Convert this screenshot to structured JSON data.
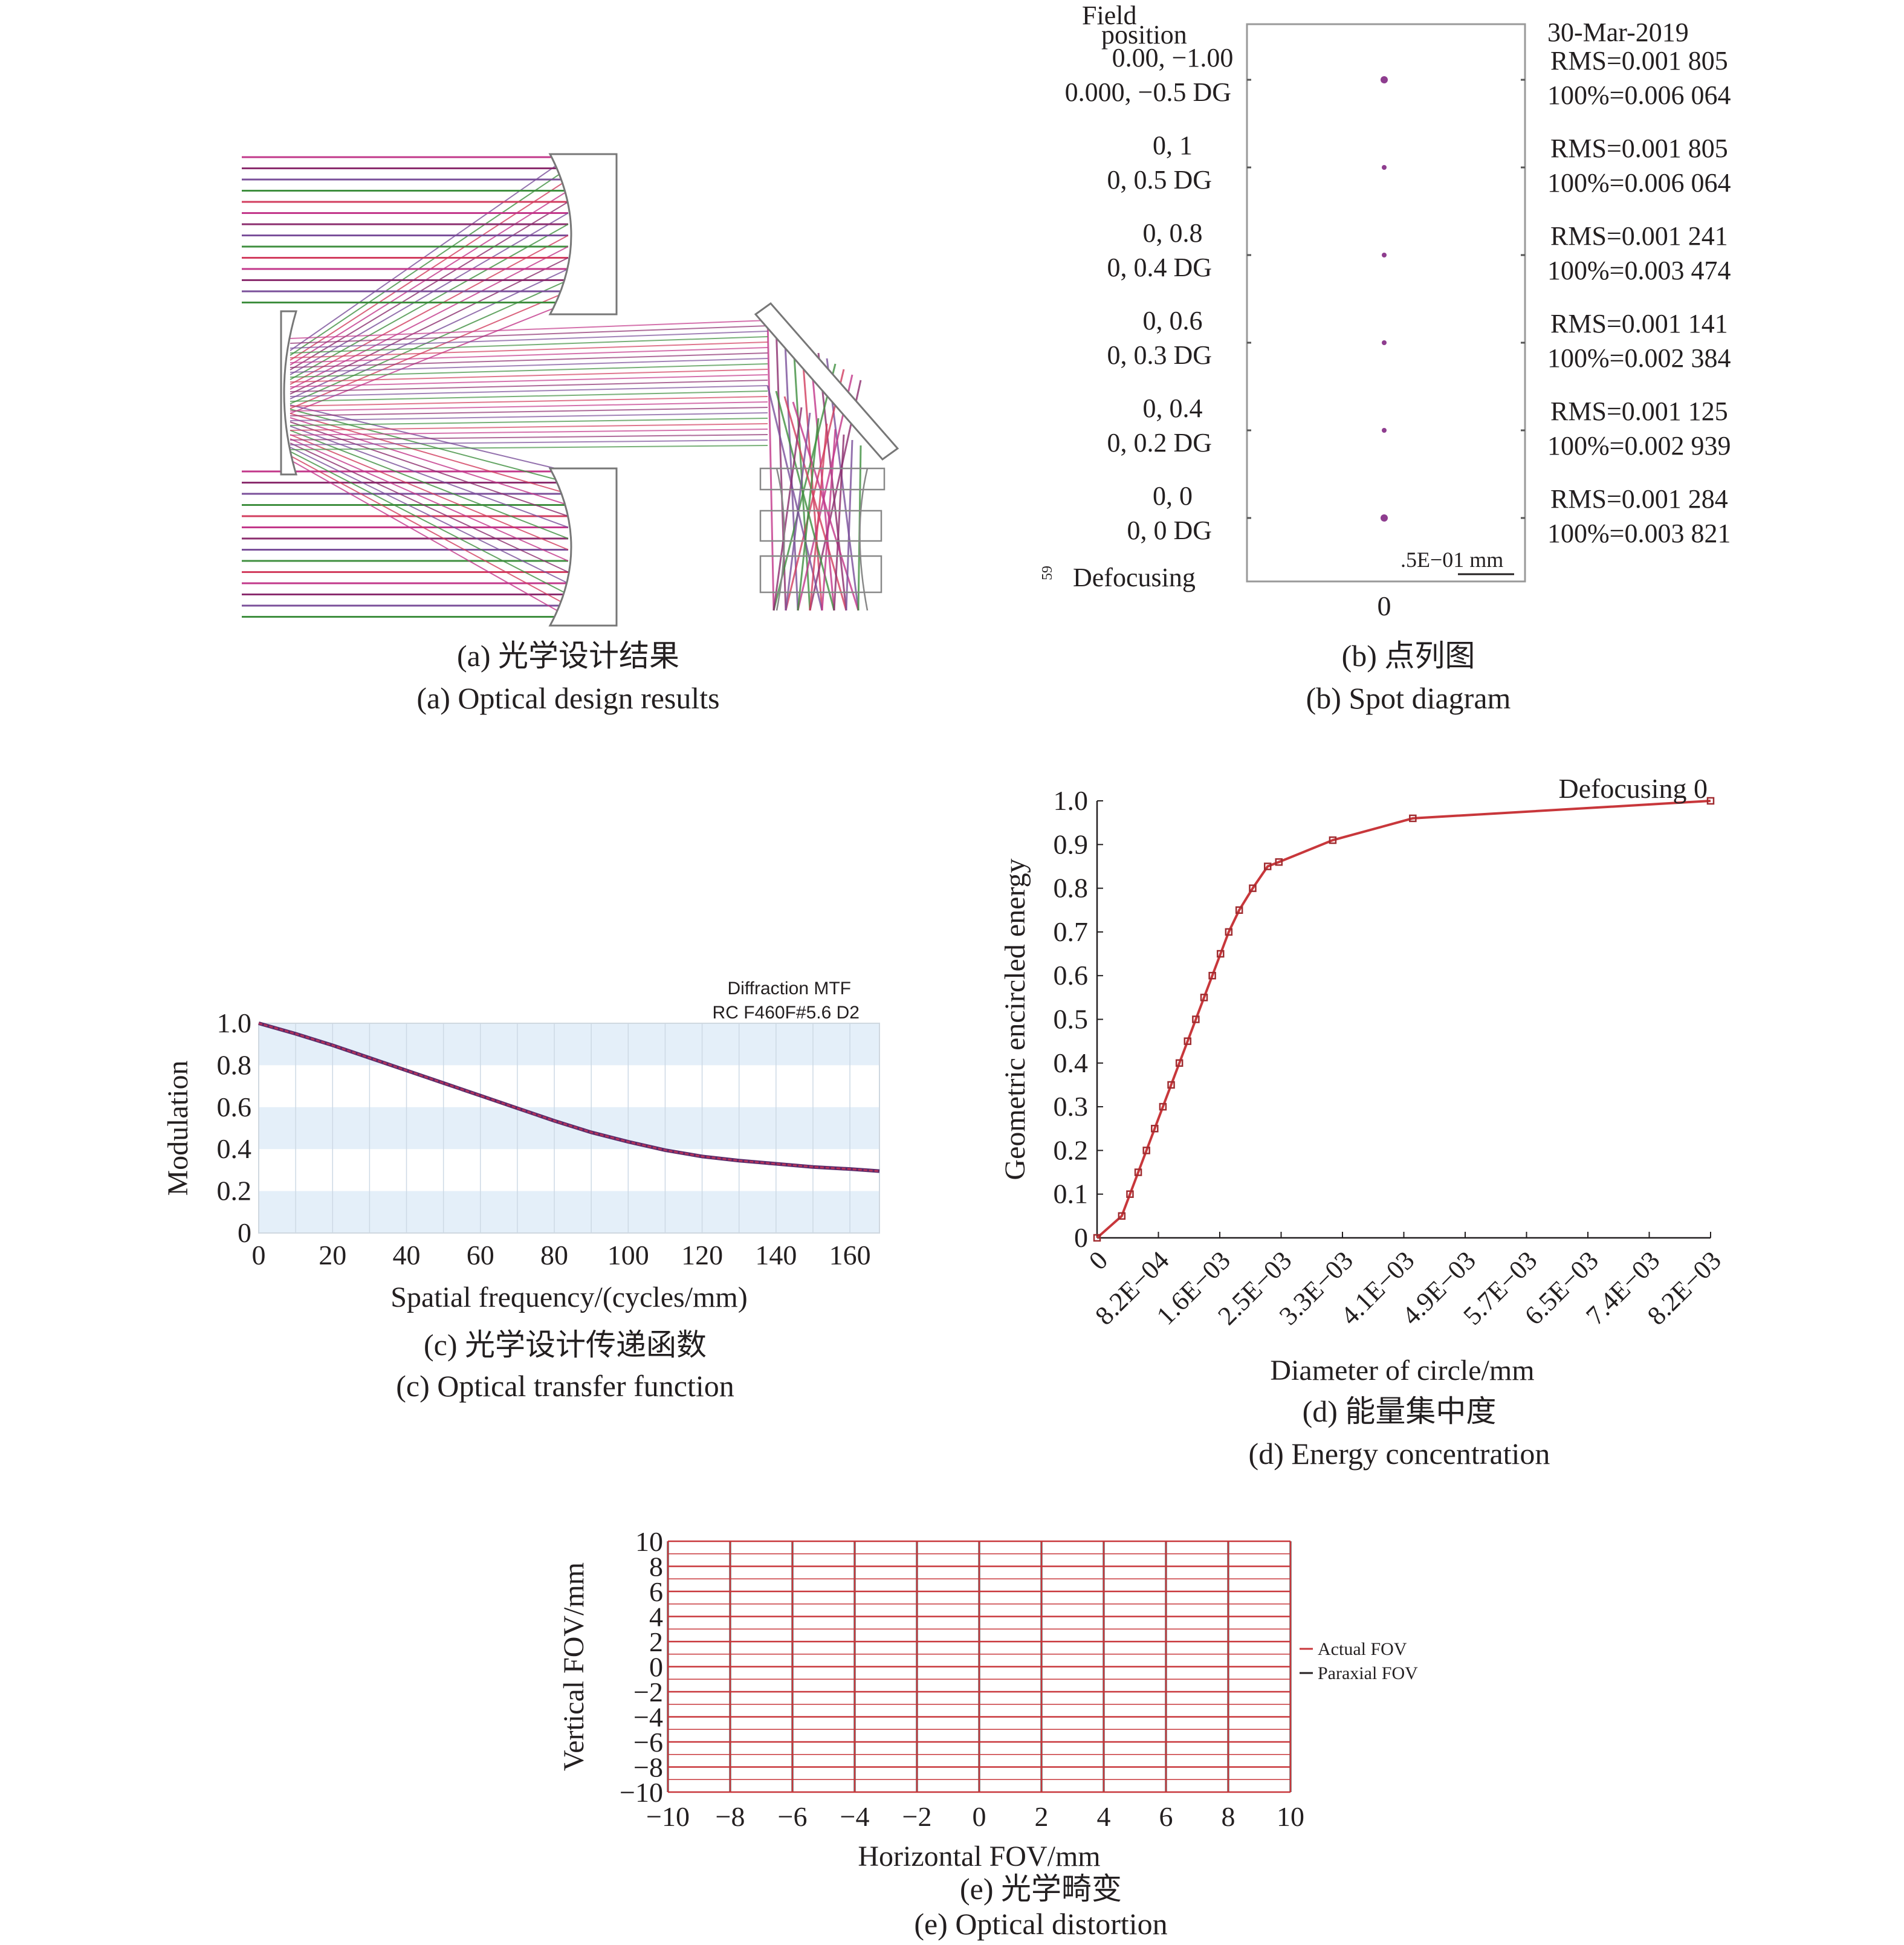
{
  "panel_a": {
    "caption_cn": "(a) 光学设计结果",
    "caption_en": "(a) Optical design results"
  },
  "panel_b": {
    "caption_cn": "(b) 点列图",
    "caption_en": "(b) Spot diagram",
    "field_header_1": "Field",
    "field_header_2": "position",
    "date": "30-Mar-2019",
    "scale_label": ".5E−01 mm",
    "x_tick": "0",
    "defocus_label": "Defocusing",
    "defocus_small": "59",
    "rows": [
      {
        "field1": "0.00, −1.00",
        "field2": "0.000, −0.5 DG",
        "rms": "RMS=0.001 805",
        "p100": "100%=0.006 064"
      },
      {
        "field1": "0, 1",
        "field2": "0, 0.5 DG",
        "rms": "RMS=0.001 805",
        "p100": "100%=0.006 064"
      },
      {
        "field1": "0, 0.8",
        "field2": "0, 0.4 DG",
        "rms": "RMS=0.001 241",
        "p100": "100%=0.003 474"
      },
      {
        "field1": "0, 0.6",
        "field2": "0, 0.3 DG",
        "rms": "RMS=0.001 141",
        "p100": "100%=0.002 384"
      },
      {
        "field1": "0, 0.4",
        "field2": "0, 0.2 DG",
        "rms": "RMS=0.001 125",
        "p100": "100%=0.002 939"
      },
      {
        "field1": "0, 0",
        "field2": "0, 0 DG",
        "rms": "RMS=0.001 284",
        "p100": "100%=0.003 821"
      }
    ]
  },
  "panel_c": {
    "caption_cn": "(c) 光学设计传递函数",
    "caption_en": "(c) Optical transfer function",
    "note_1": "Diffraction MTF",
    "note_2": "RC F460F#5.6 D2"
  },
  "panel_d": {
    "caption_cn": "(d) 能量集中度",
    "caption_en": "(d) Energy concentration"
  },
  "panel_e": {
    "caption_cn": "(e) 光学畸变",
    "caption_en": "(e) Optical distortion"
  },
  "chart_data": [
    {
      "id": "mtf",
      "type": "line",
      "xlabel": "Spatial frequency/(cycles/mm)",
      "ylabel": "Modulation",
      "xlim": [
        0,
        168
      ],
      "ylim": [
        0,
        1.0
      ],
      "xticks": [
        "0",
        "20",
        "40",
        "60",
        "80",
        "100",
        "120",
        "140",
        "160"
      ],
      "yticks": [
        "0",
        "0.2",
        "0.4",
        "0.6",
        "0.8",
        "1.0"
      ],
      "series": [
        {
          "x": [
            0,
            10,
            20,
            30,
            40,
            50,
            60,
            70,
            80,
            90,
            100,
            110,
            120,
            130,
            140,
            150,
            160,
            168
          ],
          "y": [
            1.0,
            0.95,
            0.895,
            0.835,
            0.775,
            0.715,
            0.655,
            0.595,
            0.535,
            0.48,
            0.435,
            0.395,
            0.365,
            0.345,
            0.33,
            0.315,
            0.305,
            0.295
          ],
          "color": "#b5325a"
        }
      ]
    },
    {
      "id": "encircled",
      "type": "line",
      "annotation": "Defocusing 0",
      "xlabel": "Diameter of circle/mm",
      "ylabel": "Geometric encircled energy",
      "xlim": [
        0,
        0.0082
      ],
      "ylim": [
        0,
        1.0
      ],
      "xticks": [
        "0",
        "8.2E−04",
        "1.6E−03",
        "2.5E−03",
        "3.3E−03",
        "4.1E−03",
        "4.9E−03",
        "5.7E−03",
        "6.5E−03",
        "7.4E−03",
        "8.2E−03"
      ],
      "yticks": [
        "0",
        "0.1",
        "0.2",
        "0.3",
        "0.4",
        "0.5",
        "0.6",
        "0.7",
        "0.8",
        "0.9",
        "1.0"
      ],
      "series": [
        {
          "x": [
            0,
            0.00033,
            0.00044,
            0.00055,
            0.00066,
            0.00077,
            0.00088,
            0.00099,
            0.0011,
            0.00121,
            0.00132,
            0.00143,
            0.00154,
            0.00165,
            0.00176,
            0.0019,
            0.00208,
            0.00228,
            0.00243,
            0.00315,
            0.00422,
            0.0082
          ],
          "y": [
            0,
            0.05,
            0.1,
            0.15,
            0.2,
            0.25,
            0.3,
            0.35,
            0.4,
            0.45,
            0.5,
            0.55,
            0.6,
            0.65,
            0.7,
            0.75,
            0.8,
            0.85,
            0.86,
            0.91,
            0.96,
            1.0
          ],
          "color": "#c8373b"
        }
      ]
    },
    {
      "id": "distortion",
      "type": "line",
      "xlabel": "Horizontal FOV/mm",
      "ylabel": "Vertical FOV/mm",
      "xlim": [
        -10,
        10
      ],
      "ylim": [
        -10,
        10
      ],
      "xticks": [
        "−10",
        "−8",
        "−6",
        "−4",
        "−2",
        "0",
        "2",
        "4",
        "6",
        "8",
        "10"
      ],
      "yticks": [
        "−10",
        "−8",
        "−6",
        "−4",
        "−2",
        "0",
        "2",
        "4",
        "6",
        "8",
        "10"
      ],
      "grid_values": [
        -10,
        -8,
        -6,
        -4,
        -2,
        0,
        2,
        4,
        6,
        8,
        10
      ],
      "series": [
        {
          "name": "Actual FOV",
          "color": "#c8373b"
        },
        {
          "name": "Paraxial FOV",
          "color": "#231f20"
        }
      ]
    }
  ]
}
